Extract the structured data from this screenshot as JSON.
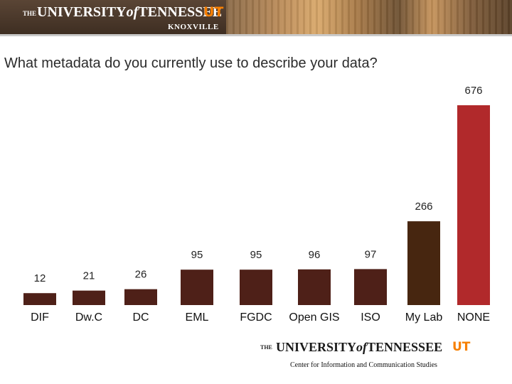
{
  "header": {
    "the": "THE",
    "university": "UNIVERSITY",
    "of": "of",
    "tennessee": "TENNESSEE",
    "ut": "UT",
    "knoxville": "KNOXVILLE"
  },
  "question": "What metadata do you currently use to describe your data?",
  "chart_data": {
    "type": "bar",
    "categories": [
      "DIF",
      "Dw.C",
      "DC",
      "EML",
      "FGDC",
      "Open GIS",
      "ISO",
      "My Lab",
      "NONE"
    ],
    "values": [
      12,
      21,
      26,
      95,
      95,
      96,
      97,
      266,
      676
    ],
    "value_labels": [
      "12",
      "21",
      "26",
      "95",
      "95",
      "96",
      "97",
      "266",
      "676"
    ],
    "colors": [
      "#4e2018",
      "#4e2018",
      "#4e2018",
      "#4e2018",
      "#4e2018",
      "#4e2018",
      "#4e2018",
      "#472610",
      "#b1292b"
    ],
    "title": "",
    "xlabel": "",
    "ylabel": "",
    "grid": false,
    "legend": "none"
  },
  "footer": {
    "the": "THE",
    "university": "UNIVERSITY",
    "of": "of",
    "tennessee": "TENNESSEE",
    "ut": "UT",
    "subtitle": "Center for Information and Communication Studies"
  }
}
